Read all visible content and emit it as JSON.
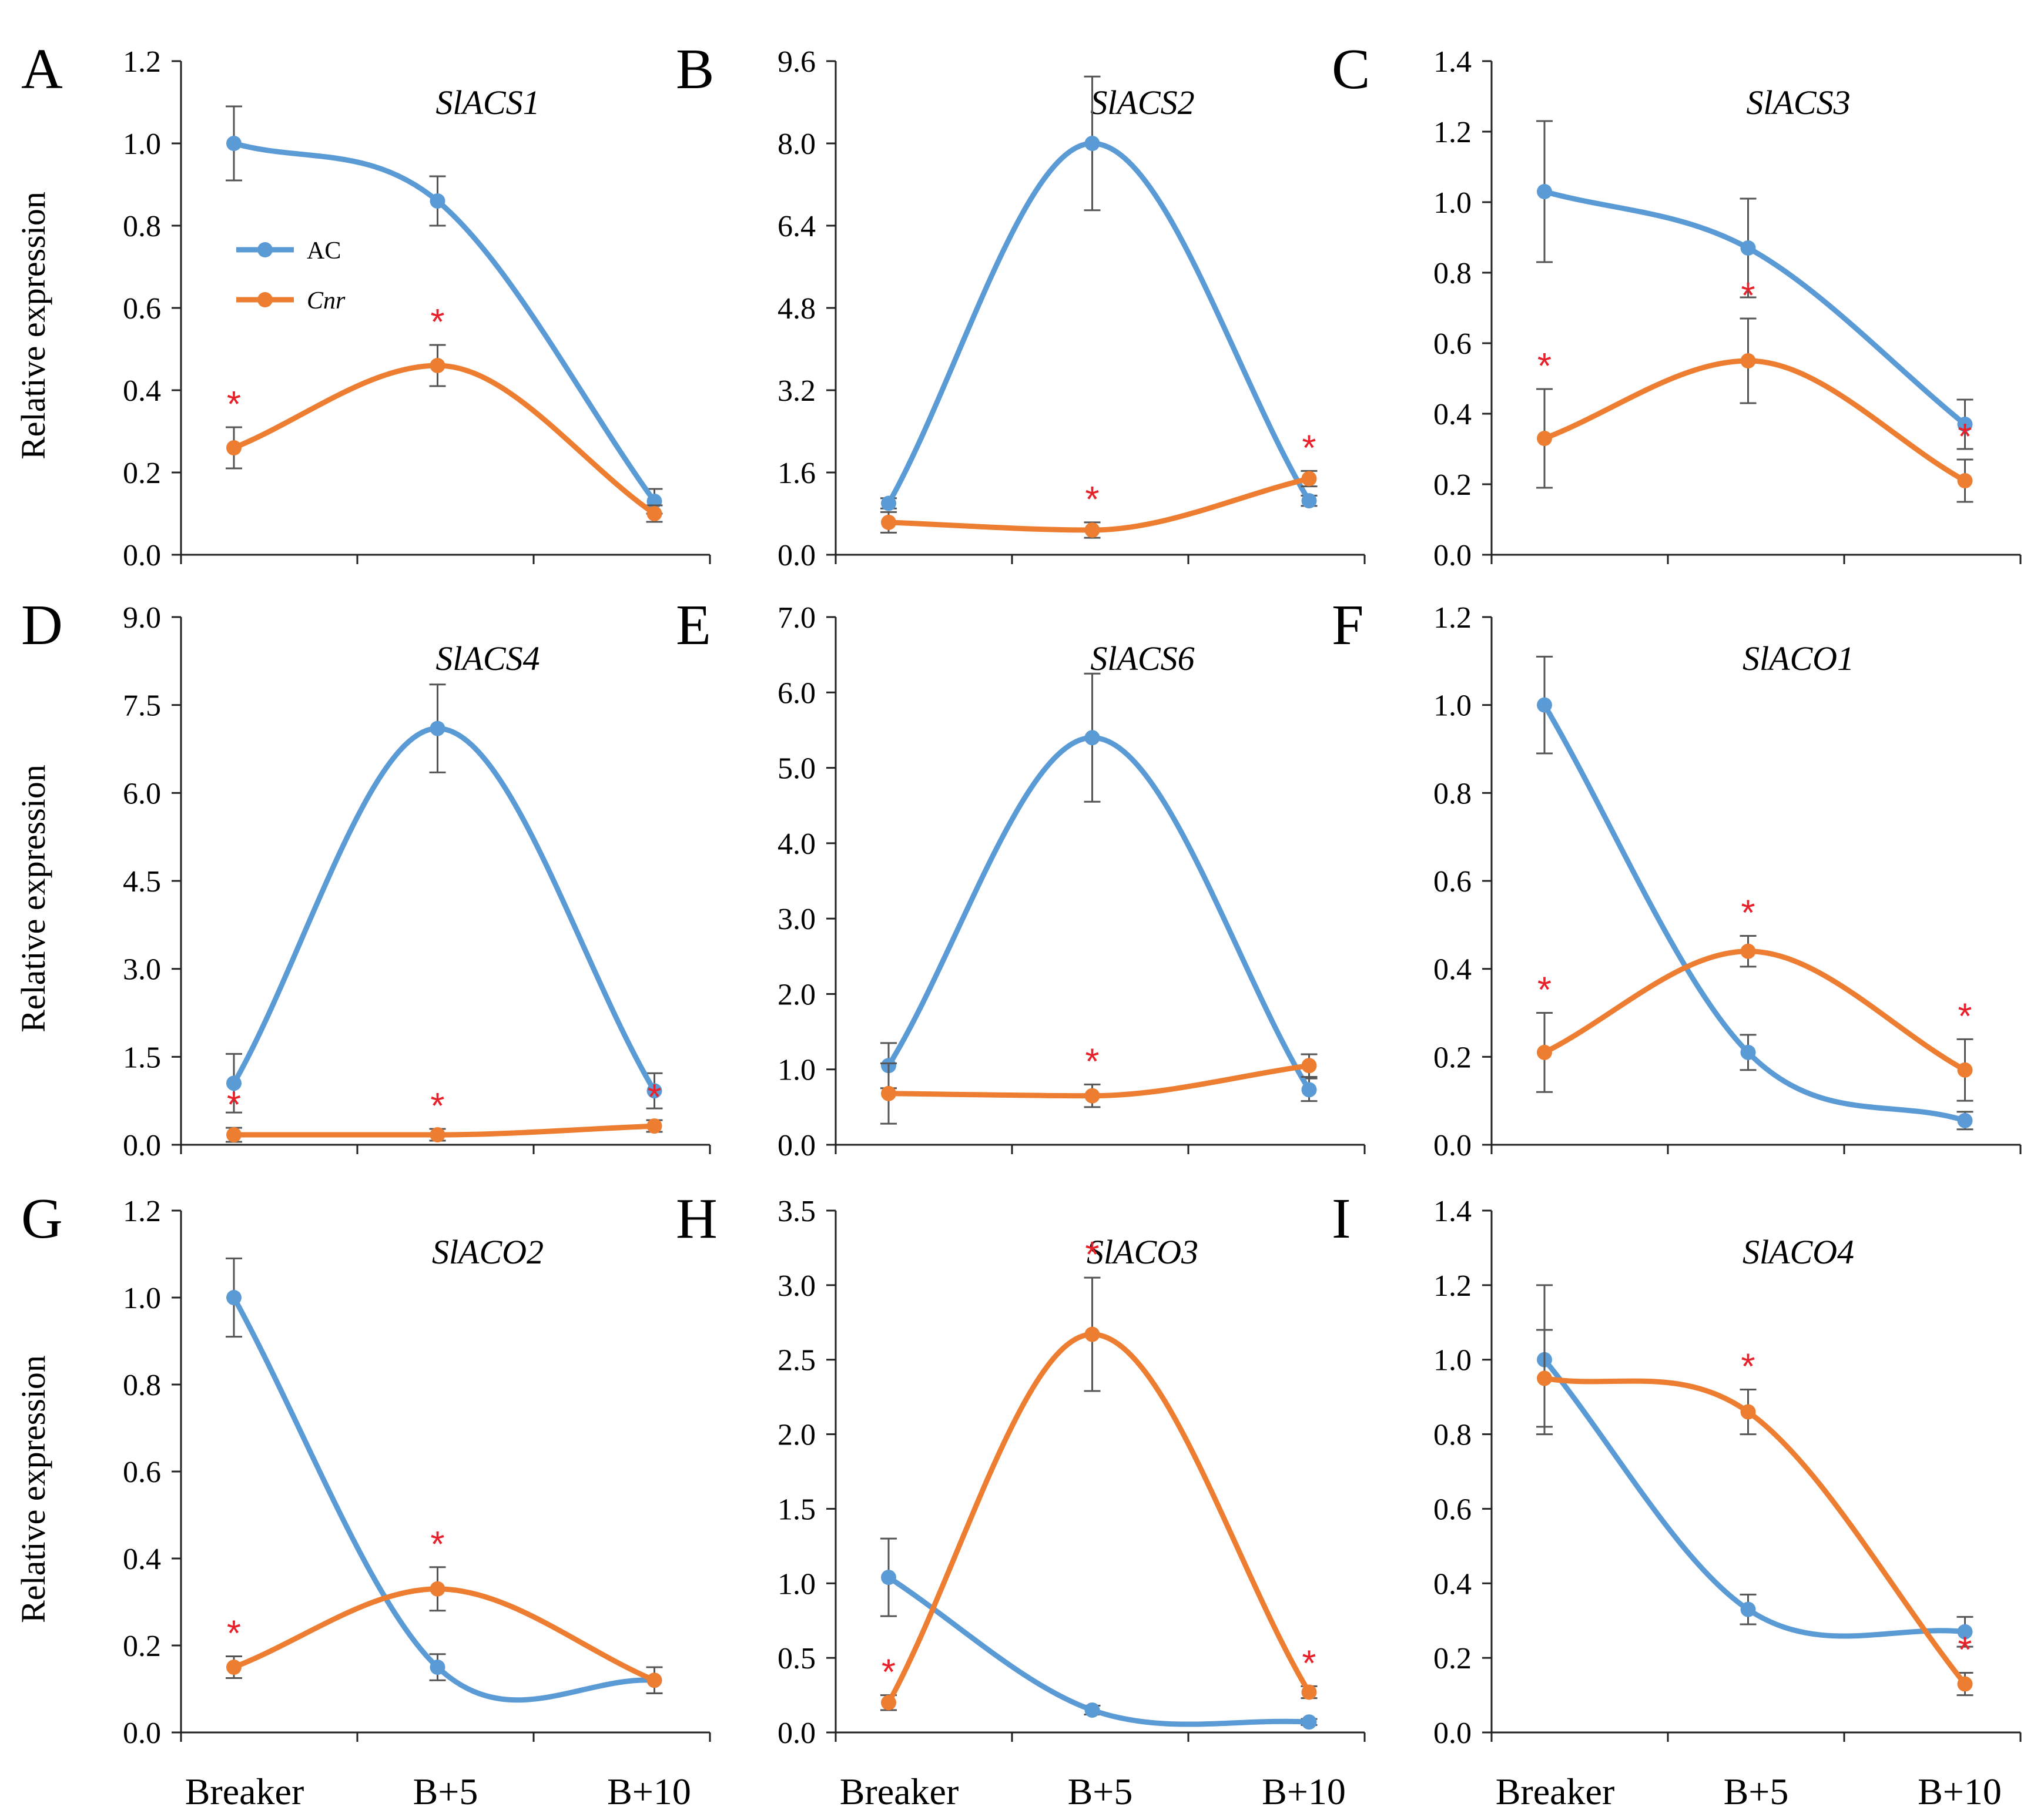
{
  "figure": {
    "x_categories": [
      "Breaker",
      "B+5",
      "B+10"
    ],
    "y_axis_label": "Relative expression",
    "legend": [
      {
        "name": "AC",
        "italic": false,
        "color": "#5b9bd5"
      },
      {
        "name": "Cnr",
        "italic": true,
        "color": "#ed7d31"
      }
    ],
    "significance_color": "#e8202a",
    "significance_mark": "*"
  },
  "chart_data": [
    {
      "panel": "A",
      "type": "line",
      "title": "SlACS1",
      "ylabel": "Relative expression",
      "ylim": [
        0,
        1.2
      ],
      "yticks": [
        "0.0",
        "0.2",
        "0.4",
        "0.6",
        "0.8",
        "1.0",
        "1.2"
      ],
      "categories": [
        "Breaker",
        "B+5",
        "B+10"
      ],
      "series": [
        {
          "name": "AC",
          "values": [
            1.0,
            0.86,
            0.13
          ],
          "errors": [
            0.09,
            0.06,
            0.03
          ]
        },
        {
          "name": "Cnr",
          "values": [
            0.26,
            0.46,
            0.1
          ],
          "errors": [
            0.05,
            0.05,
            0.02
          ]
        }
      ],
      "significant": [
        0,
        1
      ]
    },
    {
      "panel": "B",
      "type": "line",
      "title": "SlACS2",
      "ylabel": "",
      "ylim": [
        0,
        9.6
      ],
      "yticks": [
        "0.0",
        "1.6",
        "3.2",
        "4.8",
        "6.4",
        "8.0",
        "9.6"
      ],
      "categories": [
        "Breaker",
        "B+5",
        "B+10"
      ],
      "series": [
        {
          "name": "AC",
          "values": [
            1.0,
            8.0,
            1.05
          ],
          "errors": [
            0.1,
            1.3,
            0.1
          ]
        },
        {
          "name": "Cnr",
          "values": [
            0.63,
            0.48,
            1.48
          ],
          "errors": [
            0.2,
            0.15,
            0.15
          ]
        }
      ],
      "significant": [
        1,
        2
      ]
    },
    {
      "panel": "C",
      "type": "line",
      "title": "SlACS3",
      "ylabel": "",
      "ylim": [
        0,
        1.4
      ],
      "yticks": [
        "0.0",
        "0.2",
        "0.4",
        "0.6",
        "0.8",
        "1.0",
        "1.2",
        "1.4"
      ],
      "categories": [
        "Breaker",
        "B+5",
        "B+10"
      ],
      "series": [
        {
          "name": "AC",
          "values": [
            1.03,
            0.87,
            0.37
          ],
          "errors": [
            0.2,
            0.14,
            0.07
          ]
        },
        {
          "name": "Cnr",
          "values": [
            0.33,
            0.55,
            0.21
          ],
          "errors": [
            0.14,
            0.12,
            0.06
          ]
        }
      ],
      "significant": [
        0,
        1,
        2
      ]
    },
    {
      "panel": "D",
      "type": "line",
      "title": "SlACS4",
      "ylabel": "Relative expression",
      "ylim": [
        0,
        9.0
      ],
      "yticks": [
        "0.0",
        "1.5",
        "3.0",
        "4.5",
        "6.0",
        "7.5",
        "9.0"
      ],
      "categories": [
        "Breaker",
        "B+5",
        "B+10"
      ],
      "series": [
        {
          "name": "AC",
          "values": [
            1.05,
            7.1,
            0.92
          ],
          "errors": [
            0.5,
            0.75,
            0.3
          ]
        },
        {
          "name": "Cnr",
          "values": [
            0.17,
            0.17,
            0.32
          ],
          "errors": [
            0.12,
            0.1,
            0.1
          ]
        }
      ],
      "significant": [
        0,
        1,
        2
      ]
    },
    {
      "panel": "E",
      "type": "line",
      "title": "SlACS6",
      "ylabel": "",
      "ylim": [
        0,
        7.0
      ],
      "yticks": [
        "0.0",
        "1.0",
        "2.0",
        "3.0",
        "4.0",
        "5.0",
        "6.0",
        "7.0"
      ],
      "categories": [
        "Breaker",
        "B+5",
        "B+10"
      ],
      "series": [
        {
          "name": "AC",
          "values": [
            1.05,
            5.4,
            0.73
          ],
          "errors": [
            0.3,
            0.85,
            0.15
          ]
        },
        {
          "name": "Cnr",
          "values": [
            0.68,
            0.65,
            1.05
          ],
          "errors": [
            0.4,
            0.15,
            0.15
          ]
        }
      ],
      "significant": [
        1
      ]
    },
    {
      "panel": "F",
      "type": "line",
      "title": "SlACO1",
      "ylabel": "",
      "ylim": [
        0,
        1.2
      ],
      "yticks": [
        "0.0",
        "0.2",
        "0.4",
        "0.6",
        "0.8",
        "1.0",
        "1.2"
      ],
      "categories": [
        "Breaker",
        "B+5",
        "B+10"
      ],
      "series": [
        {
          "name": "AC",
          "values": [
            1.0,
            0.21,
            0.055
          ],
          "errors": [
            0.11,
            0.04,
            0.02
          ]
        },
        {
          "name": "Cnr",
          "values": [
            0.21,
            0.44,
            0.17
          ],
          "errors": [
            0.09,
            0.035,
            0.07
          ]
        }
      ],
      "significant": [
        0,
        1,
        2
      ]
    },
    {
      "panel": "G",
      "type": "line",
      "title": "SlACO2",
      "ylabel": "Relative expression",
      "ylim": [
        0,
        1.2
      ],
      "yticks": [
        "0.0",
        "0.2",
        "0.4",
        "0.6",
        "0.8",
        "1.0",
        "1.2"
      ],
      "categories": [
        "Breaker",
        "B+5",
        "B+10"
      ],
      "series": [
        {
          "name": "AC",
          "values": [
            1.0,
            0.15,
            0.12
          ],
          "errors": [
            0.09,
            0.03,
            0.03
          ]
        },
        {
          "name": "Cnr",
          "values": [
            0.15,
            0.33,
            0.12
          ],
          "errors": [
            0.025,
            0.05,
            0.03
          ]
        }
      ],
      "significant": [
        0,
        1
      ]
    },
    {
      "panel": "H",
      "type": "line",
      "title": "SlACO3",
      "ylabel": "",
      "ylim": [
        0,
        3.5
      ],
      "yticks": [
        "0.0",
        "0.5",
        "1.0",
        "1.5",
        "2.0",
        "2.5",
        "3.0",
        "3.5"
      ],
      "categories": [
        "Breaker",
        "B+5",
        "B+10"
      ],
      "series": [
        {
          "name": "AC",
          "values": [
            1.04,
            0.15,
            0.07
          ],
          "errors": [
            0.26,
            0.03,
            0.02
          ]
        },
        {
          "name": "Cnr",
          "values": [
            0.2,
            2.67,
            0.27
          ],
          "errors": [
            0.05,
            0.38,
            0.04
          ]
        }
      ],
      "significant": [
        0,
        1,
        2
      ]
    },
    {
      "panel": "I",
      "type": "line",
      "title": "SlACO4",
      "ylabel": "",
      "ylim": [
        0,
        1.4
      ],
      "yticks": [
        "0.0",
        "0.2",
        "0.4",
        "0.6",
        "0.8",
        "1.0",
        "1.2",
        "1.4"
      ],
      "categories": [
        "Breaker",
        "B+5",
        "B+10"
      ],
      "series": [
        {
          "name": "AC",
          "values": [
            1.0,
            0.33,
            0.27
          ],
          "errors": [
            0.2,
            0.04,
            0.04
          ]
        },
        {
          "name": "Cnr",
          "values": [
            0.95,
            0.86,
            0.13
          ],
          "errors": [
            0.13,
            0.06,
            0.03
          ]
        }
      ],
      "significant": [
        1,
        2
      ]
    }
  ]
}
